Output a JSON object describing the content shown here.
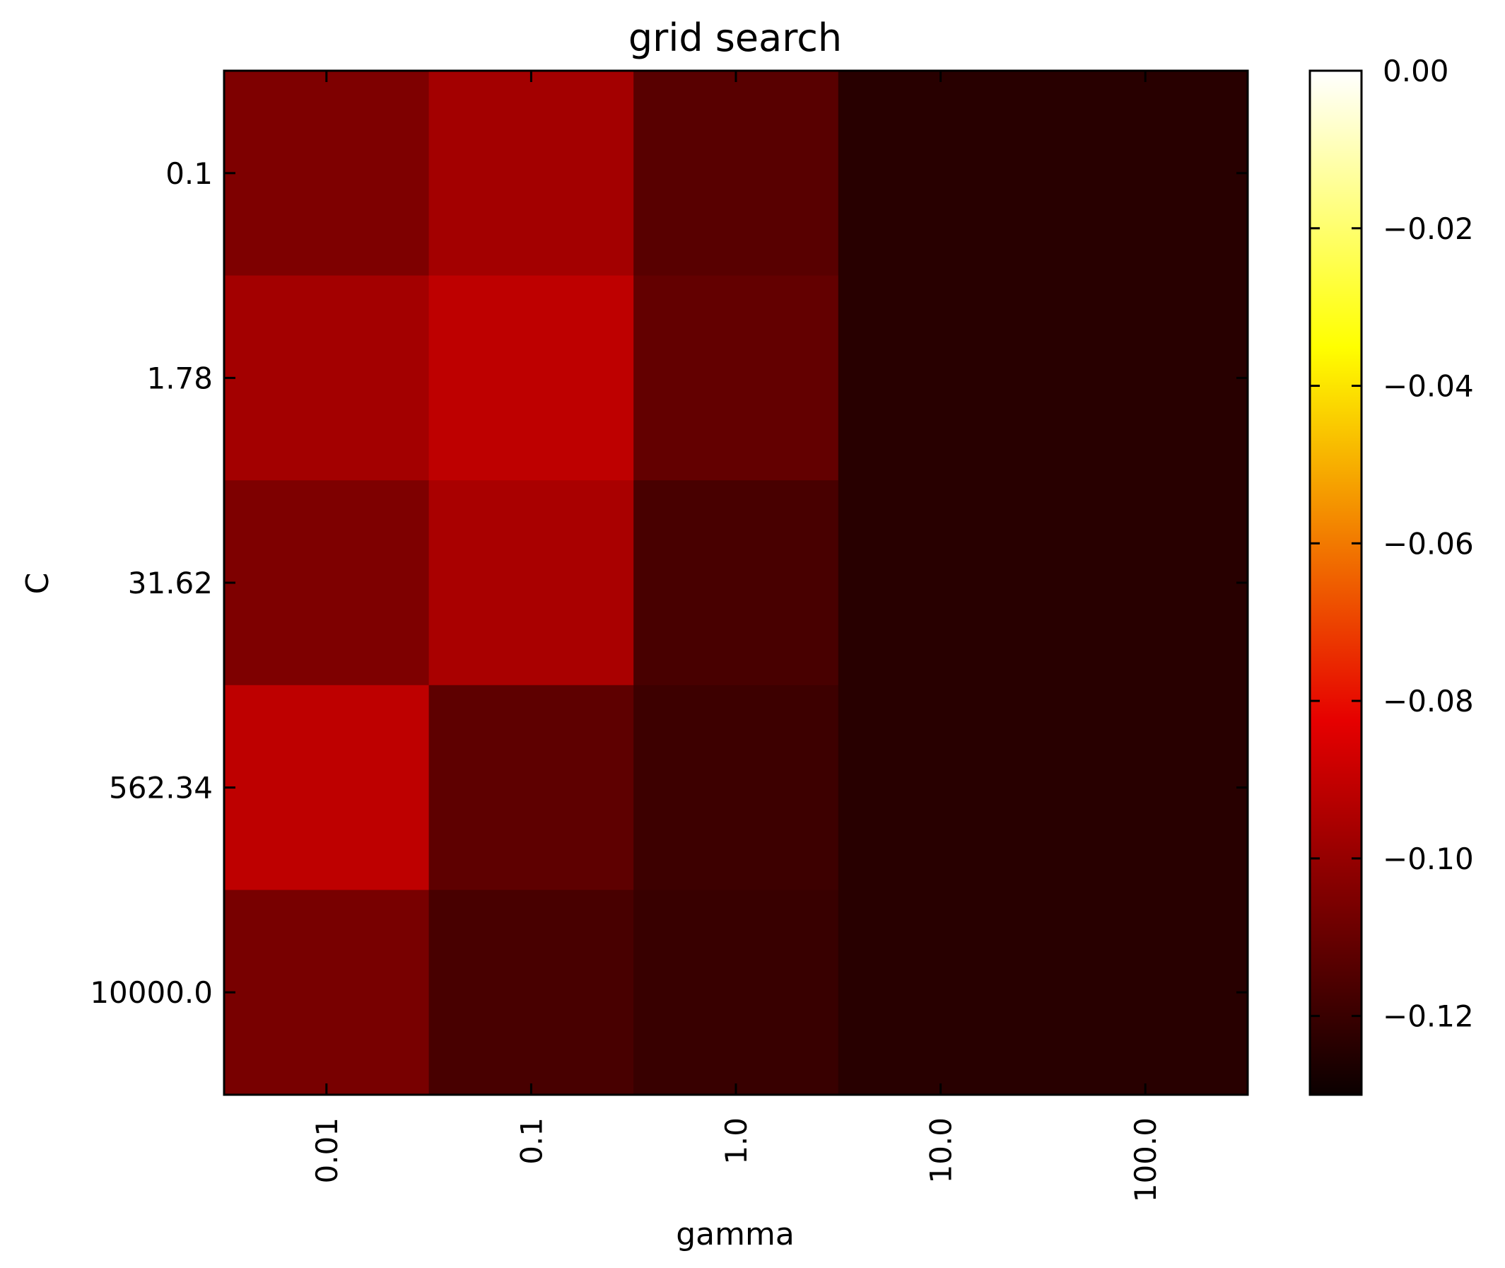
{
  "chart_data": {
    "type": "heatmap",
    "title": "grid search",
    "xlabel": "gamma",
    "ylabel": "C",
    "x_categories": [
      "0.01",
      "0.1",
      "1.0",
      "10.0",
      "100.0"
    ],
    "y_categories": [
      "0.1",
      "1.78",
      "31.62",
      "562.34",
      "10000.0"
    ],
    "values": [
      [
        -0.112,
        -0.105,
        -0.119,
        -0.128,
        -0.128
      ],
      [
        -0.105,
        -0.1,
        -0.117,
        -0.128,
        -0.128
      ],
      [
        -0.112,
        -0.104,
        -0.122,
        -0.128,
        -0.128
      ],
      [
        -0.1,
        -0.118,
        -0.124,
        -0.128,
        -0.128
      ],
      [
        -0.113,
        -0.122,
        -0.125,
        -0.128,
        -0.128
      ]
    ],
    "colormap": "hot",
    "colorbar": {
      "min": -0.13,
      "max": 0.0,
      "ticks": [
        0.0,
        -0.02,
        -0.04,
        -0.06,
        -0.08,
        -0.1,
        -0.12
      ],
      "tick_labels": [
        "0.00",
        "−0.02",
        "−0.04",
        "−0.06",
        "−0.08",
        "−0.10",
        "−0.12"
      ]
    },
    "grid": false
  }
}
